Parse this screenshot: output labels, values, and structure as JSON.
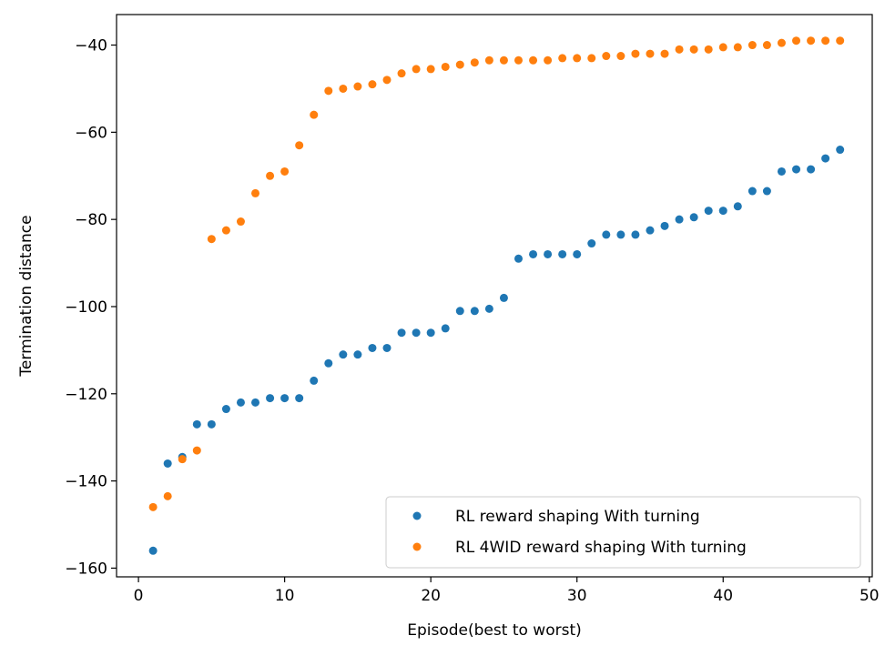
{
  "chart_data": {
    "type": "scatter",
    "title": "",
    "xlabel": "Episode(best to worst)",
    "ylabel": "Termination distance",
    "xlim": [
      -1.5,
      50.2
    ],
    "ylim": [
      -162,
      -33
    ],
    "xticks": [
      0,
      10,
      20,
      30,
      40,
      50
    ],
    "yticks": [
      -160,
      -140,
      -120,
      -100,
      -80,
      -60,
      -40
    ],
    "grid": false,
    "legend_position": "lower-right",
    "series": [
      {
        "name": "RL reward shaping With turning",
        "color": "#1f77b4",
        "x": [
          1,
          2,
          3,
          4,
          5,
          6,
          7,
          8,
          9,
          10,
          11,
          12,
          13,
          14,
          15,
          16,
          17,
          18,
          19,
          20,
          21,
          22,
          23,
          24,
          25,
          26,
          27,
          28,
          29,
          30,
          31,
          32,
          33,
          34,
          35,
          36,
          37,
          38,
          39,
          40,
          41,
          42,
          43,
          44,
          45,
          46,
          47,
          48
        ],
        "y": [
          -156,
          -136,
          -134.5,
          -127,
          -127,
          -123.5,
          -122,
          -122,
          -121,
          -121,
          -121,
          -117,
          -113,
          -111,
          -111,
          -109.5,
          -109.5,
          -106,
          -106,
          -106,
          -105,
          -101,
          -101,
          -100.5,
          -98,
          -89,
          -88,
          -88,
          -88,
          -88,
          -85.5,
          -83.5,
          -83.5,
          -83.5,
          -82.5,
          -81.5,
          -80,
          -79.5,
          -78,
          -78,
          -77,
          -73.5,
          -73.5,
          -69,
          -68.5,
          -68.5,
          -66,
          -64
        ]
      },
      {
        "name": "RL 4WID reward shaping With turning",
        "color": "#ff7f0e",
        "x": [
          1,
          2,
          3,
          4,
          5,
          6,
          7,
          8,
          9,
          10,
          11,
          12,
          13,
          14,
          15,
          16,
          17,
          18,
          19,
          20,
          21,
          22,
          23,
          24,
          25,
          26,
          27,
          28,
          29,
          30,
          31,
          32,
          33,
          34,
          35,
          36,
          37,
          38,
          39,
          40,
          41,
          42,
          43,
          44,
          45,
          46,
          47,
          48
        ],
        "y": [
          -146,
          -143.5,
          -135,
          -133,
          -84.5,
          -82.5,
          -80.5,
          -74,
          -70,
          -69,
          -63,
          -56,
          -50.5,
          -50,
          -49.5,
          -49,
          -48,
          -46.5,
          -45.5,
          -45.5,
          -45,
          -44.5,
          -44,
          -43.5,
          -43.5,
          -43.5,
          -43.5,
          -43.5,
          -43,
          -43,
          -43,
          -42.5,
          -42.5,
          -42,
          -42,
          -42,
          -41,
          -41,
          -41,
          -40.5,
          -40.5,
          -40,
          -40,
          -39.5,
          -39,
          -39,
          -39,
          -39
        ]
      }
    ]
  }
}
